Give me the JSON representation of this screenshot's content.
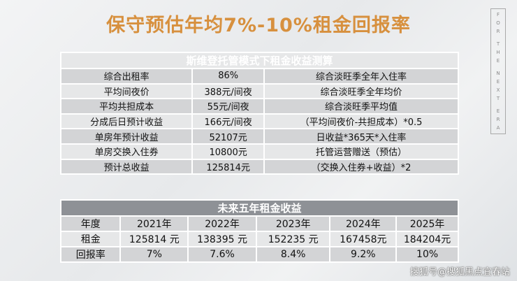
{
  "headline": "保守预估年均7%-10%租金回报率",
  "brand_letters": [
    "F",
    "O",
    "R",
    "T",
    "H",
    "E",
    "N",
    "E",
    "X",
    "T",
    "E",
    "R",
    "A"
  ],
  "income_table": {
    "title": "斯维登托管模式下租金收益测算",
    "rows": [
      {
        "item": "综合出租率",
        "value": "86%",
        "note": "综合淡旺季全年入住率"
      },
      {
        "item": "平均间夜价",
        "value": "388元/间夜",
        "note": "综合淡旺季全年均价"
      },
      {
        "item": "平均共担成本",
        "value": "55元/间夜",
        "note": "综合淡旺季平均值"
      },
      {
        "item": "分成后日预计收益",
        "value": "166元/间夜",
        "note": "（平均间夜价-共担成本）*0.5"
      },
      {
        "item": "单房年预计收益",
        "value": "52107元",
        "note": "日收益*365天*入住率"
      },
      {
        "item": "单房交换入住券",
        "value": "10800元",
        "note": "托管运营赠送（预估）"
      },
      {
        "item": "预计总收益",
        "value": "125814元",
        "note": "（交换入住券+收益）*2"
      }
    ]
  },
  "five_year_table": {
    "title": "未来五年租金收益",
    "header": [
      "年度",
      "2021年",
      "2022年",
      "2023年",
      "2024年",
      "2025年"
    ],
    "rent": [
      "租金",
      "125814 元",
      "138395 元",
      "152235 元",
      "167458元",
      "184204元"
    ],
    "return_rate": [
      "回报率",
      "7%",
      "7.6%",
      "8.4%",
      "9.2%",
      "10%"
    ]
  },
  "watermark": "搜狐号@搜狐黑点宜春站"
}
